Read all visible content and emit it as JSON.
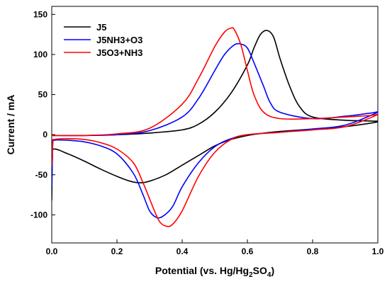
{
  "chart_data": {
    "type": "line",
    "title": "",
    "xlabel": {
      "prefix": "Potential (vs. Hg/Hg",
      "sub1": "2",
      "mid": "SO",
      "sub2": "4",
      "suffix": ")"
    },
    "ylabel": "Current / mA",
    "xlim": [
      0.0,
      1.0
    ],
    "ylim": [
      -135,
      160
    ],
    "x_ticks": [
      0.0,
      0.2,
      0.4,
      0.6,
      0.8,
      1.0
    ],
    "x_tick_labels": [
      "0.0",
      "0.2",
      "0.4",
      "0.6",
      "0.8",
      "1.0"
    ],
    "y_ticks": [
      -100,
      -50,
      0,
      50,
      100,
      150
    ],
    "y_tick_labels": [
      "-100",
      "-50",
      "0",
      "50",
      "100",
      "150"
    ],
    "legend_position": "top-left",
    "grid": false,
    "series": [
      {
        "name": "J5",
        "color": "#000000",
        "points": [
          [
            0.0,
            -82
          ],
          [
            0.002,
            -30
          ],
          [
            0.006,
            -18
          ],
          [
            0.05,
            -24
          ],
          [
            0.1,
            -33
          ],
          [
            0.15,
            -43
          ],
          [
            0.2,
            -52
          ],
          [
            0.24,
            -58
          ],
          [
            0.27,
            -60
          ],
          [
            0.3,
            -58
          ],
          [
            0.35,
            -50
          ],
          [
            0.4,
            -38
          ],
          [
            0.45,
            -26
          ],
          [
            0.5,
            -14
          ],
          [
            0.55,
            -6
          ],
          [
            0.6,
            -1
          ],
          [
            0.65,
            2
          ],
          [
            0.7,
            4
          ],
          [
            0.8,
            7
          ],
          [
            0.9,
            10
          ],
          [
            1.0,
            16
          ],
          [
            0.98,
            17
          ],
          [
            0.9,
            18
          ],
          [
            0.8,
            22
          ],
          [
            0.76,
            35
          ],
          [
            0.73,
            60
          ],
          [
            0.7,
            95
          ],
          [
            0.68,
            122
          ],
          [
            0.66,
            130
          ],
          [
            0.64,
            125
          ],
          [
            0.62,
            108
          ],
          [
            0.6,
            87
          ],
          [
            0.55,
            52
          ],
          [
            0.5,
            28
          ],
          [
            0.45,
            13
          ],
          [
            0.4,
            6
          ],
          [
            0.3,
            2
          ],
          [
            0.2,
            0
          ],
          [
            0.1,
            -1
          ],
          [
            0.0,
            -1
          ]
        ]
      },
      {
        "name": "J5NH3+O3",
        "color": "#0000ff",
        "points": [
          [
            0.0,
            -65
          ],
          [
            0.003,
            -12
          ],
          [
            0.008,
            -7
          ],
          [
            0.05,
            -7
          ],
          [
            0.1,
            -9
          ],
          [
            0.15,
            -14
          ],
          [
            0.2,
            -24
          ],
          [
            0.25,
            -48
          ],
          [
            0.28,
            -75
          ],
          [
            0.3,
            -95
          ],
          [
            0.32,
            -103
          ],
          [
            0.34,
            -102
          ],
          [
            0.37,
            -90
          ],
          [
            0.4,
            -65
          ],
          [
            0.45,
            -35
          ],
          [
            0.5,
            -15
          ],
          [
            0.55,
            -5
          ],
          [
            0.6,
            0
          ],
          [
            0.7,
            3
          ],
          [
            0.8,
            7
          ],
          [
            0.9,
            12
          ],
          [
            1.0,
            28
          ],
          [
            0.98,
            27
          ],
          [
            0.9,
            23
          ],
          [
            0.8,
            20
          ],
          [
            0.7,
            28
          ],
          [
            0.67,
            40
          ],
          [
            0.65,
            60
          ],
          [
            0.62,
            90
          ],
          [
            0.6,
            108
          ],
          [
            0.58,
            113
          ],
          [
            0.56,
            112
          ],
          [
            0.53,
            100
          ],
          [
            0.5,
            80
          ],
          [
            0.45,
            45
          ],
          [
            0.4,
            22
          ],
          [
            0.3,
            5
          ],
          [
            0.2,
            0
          ],
          [
            0.1,
            -1
          ],
          [
            0.0,
            -1
          ]
        ]
      },
      {
        "name": "J5O3+NH3",
        "color": "#ff0000",
        "points": [
          [
            0.0,
            -40
          ],
          [
            0.003,
            -10
          ],
          [
            0.008,
            -6
          ],
          [
            0.05,
            -5
          ],
          [
            0.1,
            -6
          ],
          [
            0.15,
            -10
          ],
          [
            0.2,
            -18
          ],
          [
            0.25,
            -35
          ],
          [
            0.28,
            -60
          ],
          [
            0.31,
            -90
          ],
          [
            0.33,
            -108
          ],
          [
            0.35,
            -114
          ],
          [
            0.37,
            -112
          ],
          [
            0.4,
            -95
          ],
          [
            0.45,
            -52
          ],
          [
            0.5,
            -22
          ],
          [
            0.55,
            -6
          ],
          [
            0.6,
            0
          ],
          [
            0.7,
            3
          ],
          [
            0.8,
            6
          ],
          [
            0.9,
            10
          ],
          [
            1.0,
            25
          ],
          [
            0.98,
            24
          ],
          [
            0.9,
            22
          ],
          [
            0.8,
            20
          ],
          [
            0.7,
            20
          ],
          [
            0.65,
            28
          ],
          [
            0.62,
            50
          ],
          [
            0.6,
            80
          ],
          [
            0.58,
            112
          ],
          [
            0.56,
            131
          ],
          [
            0.55,
            133
          ],
          [
            0.53,
            128
          ],
          [
            0.5,
            110
          ],
          [
            0.45,
            70
          ],
          [
            0.4,
            38
          ],
          [
            0.3,
            8
          ],
          [
            0.2,
            1
          ],
          [
            0.1,
            -1
          ],
          [
            0.0,
            -1
          ]
        ]
      }
    ]
  }
}
